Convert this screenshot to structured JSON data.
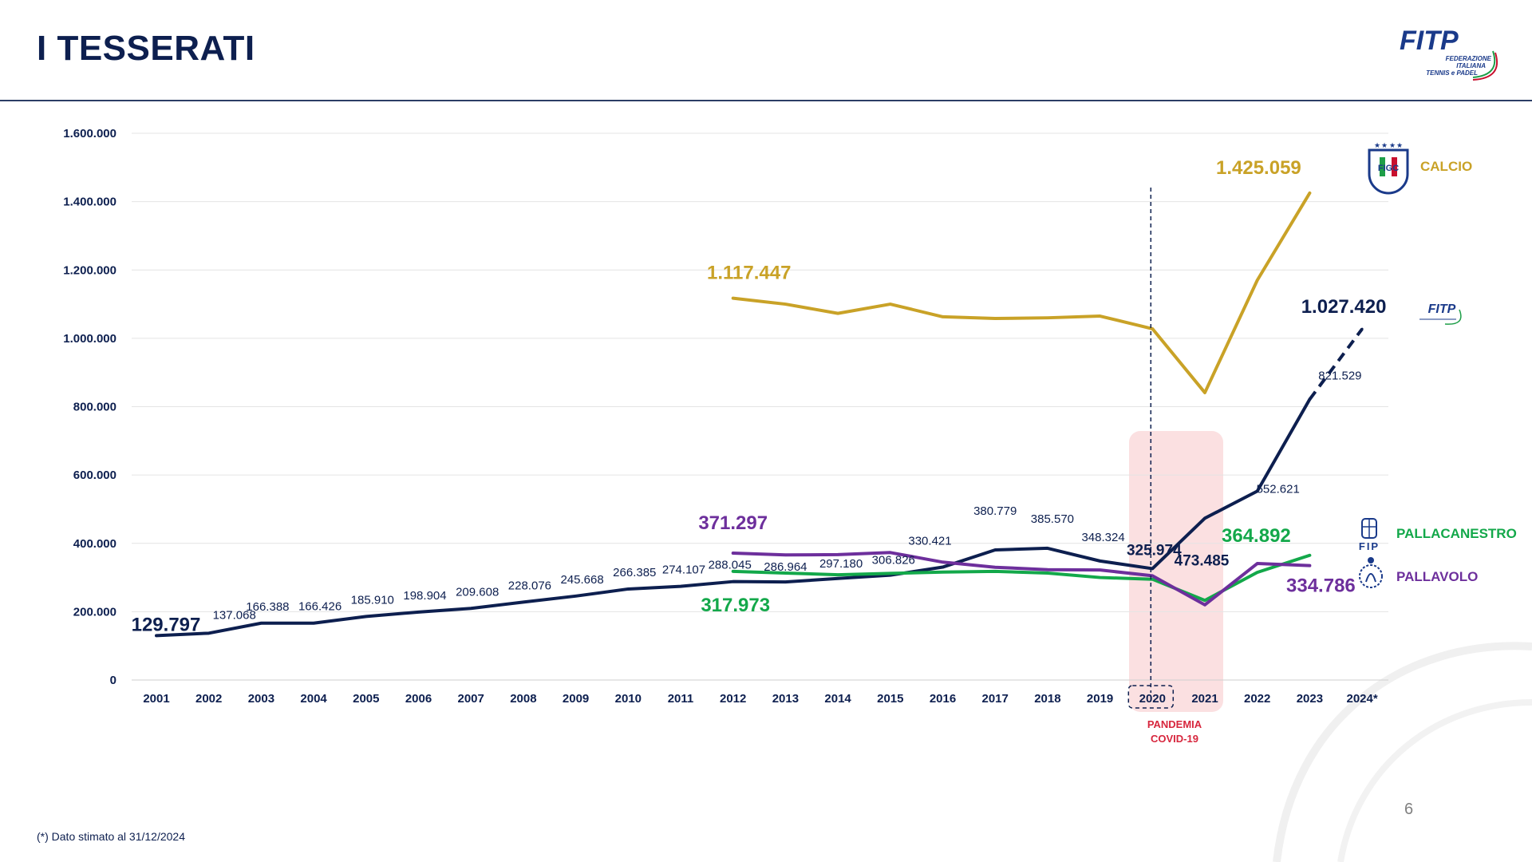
{
  "page": {
    "title": "I TESSERATI",
    "page_number": "6",
    "footnote": "(*) Dato stimato al 31/12/2024",
    "logo_text": "FITP",
    "logo_subtext": [
      "FEDERAZIONE",
      "ITALIANA",
      "TENNIS e PADEL"
    ]
  },
  "chart_data": {
    "type": "line",
    "ylim": [
      0,
      1600000
    ],
    "yticks": [
      0,
      200000,
      400000,
      600000,
      800000,
      1000000,
      1200000,
      1400000,
      1600000
    ],
    "ytick_labels": [
      "0",
      "200.000",
      "400.000",
      "600.000",
      "800.000",
      "1.000.000",
      "1.200.000",
      "1.400.000",
      "1.600.000"
    ],
    "categories": [
      "2001",
      "2002",
      "2003",
      "2004",
      "2005",
      "2006",
      "2007",
      "2008",
      "2009",
      "2010",
      "2011",
      "2012",
      "2013",
      "2014",
      "2015",
      "2016",
      "2017",
      "2018",
      "2019",
      "2020",
      "2021",
      "2022",
      "2023",
      "2024*"
    ],
    "grid": true,
    "series": [
      {
        "name": "CALCIO",
        "color": "#c9a227",
        "values": [
          null,
          null,
          null,
          null,
          null,
          null,
          null,
          null,
          null,
          null,
          null,
          1117447,
          1100000,
          1073000,
          1100000,
          1063000,
          1058000,
          1060000,
          1065000,
          1028000,
          841000,
          1170000,
          1425059,
          null
        ],
        "labels": [
          {
            "index": 11,
            "text": "1.117.447"
          },
          {
            "index": 22,
            "text": "1.425.059"
          }
        ]
      },
      {
        "name": "FITP",
        "color": "#0d1f4f",
        "values": [
          129797,
          137068,
          166388,
          166426,
          185910,
          198904,
          209608,
          228076,
          245668,
          266385,
          274107,
          288045,
          286964,
          297180,
          306826,
          330421,
          380779,
          385570,
          348324,
          325974,
          473485,
          552621,
          821529,
          1027420
        ],
        "dashed_from_index": 22,
        "labels": [
          "129.797",
          "137.068",
          "166.388",
          "166.426",
          "185.910",
          "198.904",
          "209.608",
          "228.076",
          "245.668",
          "266.385",
          "274.107",
          "288.045",
          "286.964",
          "297.180",
          "306.826",
          "330.421",
          "380.779",
          "385.570",
          "348.324",
          "325.974",
          "473.485",
          "552.621",
          "821.529",
          "1.027.420"
        ]
      },
      {
        "name": "PALLACANESTRO",
        "color": "#13a84a",
        "values": [
          null,
          null,
          null,
          null,
          null,
          null,
          null,
          null,
          null,
          null,
          null,
          317973,
          313000,
          308000,
          312000,
          316000,
          318000,
          313000,
          300000,
          295000,
          233000,
          315000,
          364892,
          null
        ],
        "labels": [
          {
            "index": 11,
            "text": "317.973"
          },
          {
            "index": 22,
            "text": "364.892"
          }
        ]
      },
      {
        "name": "PALLAVOLO",
        "color": "#6d2f9c",
        "values": [
          null,
          null,
          null,
          null,
          null,
          null,
          null,
          null,
          null,
          null,
          null,
          371297,
          366000,
          367000,
          373000,
          345000,
          330000,
          323000,
          322000,
          305000,
          220000,
          341000,
          334786,
          null
        ],
        "labels": [
          {
            "index": 11,
            "text": "371.297"
          },
          {
            "index": 22,
            "text": "334.786"
          }
        ]
      }
    ],
    "annotations": [
      {
        "type": "vline",
        "x_index": 19,
        "style": "dashed"
      },
      {
        "type": "band",
        "x_index": 20,
        "text": [
          "PANDEMIA",
          "COVID-19"
        ],
        "color": "#f7c6c8"
      },
      {
        "type": "box",
        "x_index": 19,
        "style": "dashed"
      }
    ],
    "legend": [
      {
        "series": "CALCIO",
        "text": "CALCIO",
        "icon": "figc-logo-icon",
        "color": "#c9a227"
      },
      {
        "series": "FITP",
        "text": "",
        "icon": "fitp-logo-icon",
        "color": "#0d1f4f"
      },
      {
        "series": "PALLACANESTRO",
        "text": "PALLACANESTRO",
        "icon": "fip-logo-icon",
        "color": "#13a84a"
      },
      {
        "series": "PALLAVOLO",
        "text": "PALLAVOLO",
        "icon": "fipav-logo-icon",
        "color": "#6d2f9c"
      }
    ]
  }
}
